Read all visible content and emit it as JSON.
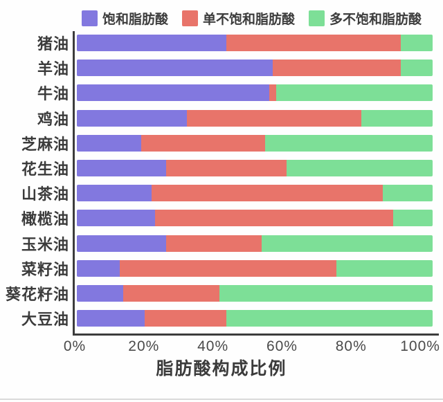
{
  "legend": [
    {
      "label": "饱和脂肪酸",
      "color": "#8278df"
    },
    {
      "label": "单不饱和脂肪酸",
      "color": "#e8746a"
    },
    {
      "label": "多不饱和脂肪酸",
      "color": "#7ddf97"
    }
  ],
  "xlabel": "脂肪酸构成比例",
  "chart_data": {
    "type": "bar",
    "orientation": "horizontal",
    "stacked": true,
    "title": "",
    "xlabel": "脂肪酸构成比例",
    "ylabel": "",
    "x_ticks": [
      "0%",
      "20%",
      "40%",
      "60%",
      "80%",
      "100%"
    ],
    "xlim": [
      0,
      103
    ],
    "grid": false,
    "legend_position": "top",
    "categories": [
      "猪油",
      "羊油",
      "牛油",
      "鸡油",
      "芝麻油",
      "花生油",
      "山茶油",
      "橄榄油",
      "玉米油",
      "菜籽油",
      "葵花籽油",
      "大豆油"
    ],
    "series": [
      {
        "name": "饱和脂肪酸",
        "color": "#8278df",
        "values": [
          42,
          55,
          54,
          31,
          18,
          25,
          21,
          22,
          25,
          12,
          13,
          19
        ]
      },
      {
        "name": "单不饱和脂肪酸",
        "color": "#e8746a",
        "values": [
          49,
          36,
          2,
          49,
          35,
          34,
          65,
          67,
          27,
          61,
          27,
          23
        ]
      },
      {
        "name": "多不饱和脂肪酸",
        "color": "#7ddf97",
        "values": [
          9,
          9,
          44,
          20,
          47,
          41,
          14,
          11,
          48,
          27,
          60,
          58
        ]
      }
    ]
  }
}
